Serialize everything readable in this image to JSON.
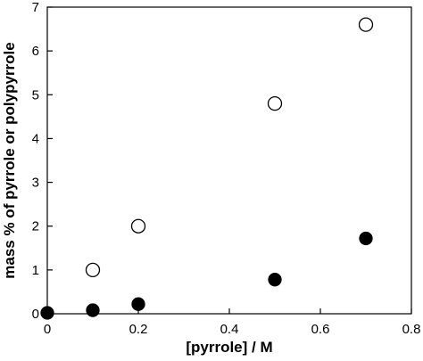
{
  "chart_data": {
    "type": "scatter",
    "title": "",
    "xlabel": "[pyrrole] / M",
    "ylabel": "mass % of pyrrole or polypyrrole",
    "xlim": [
      0,
      0.8
    ],
    "ylim": [
      0,
      7
    ],
    "xticks": [
      "0",
      "0.2",
      "0.4",
      "0.6",
      "0.8"
    ],
    "yticks": [
      "0",
      "1",
      "2",
      "3",
      "4",
      "5",
      "6",
      "7"
    ],
    "grid": false,
    "legend": "none",
    "series": [
      {
        "marker": "open-circle",
        "x": [
          0.1,
          0.2,
          0.5,
          0.7
        ],
        "y": [
          1.0,
          2.0,
          4.8,
          6.6
        ]
      },
      {
        "marker": "filled-circle",
        "x": [
          0,
          0.1,
          0.2,
          0.5,
          0.7
        ],
        "y": [
          0.02,
          0.08,
          0.22,
          0.78,
          1.72
        ]
      }
    ]
  }
}
